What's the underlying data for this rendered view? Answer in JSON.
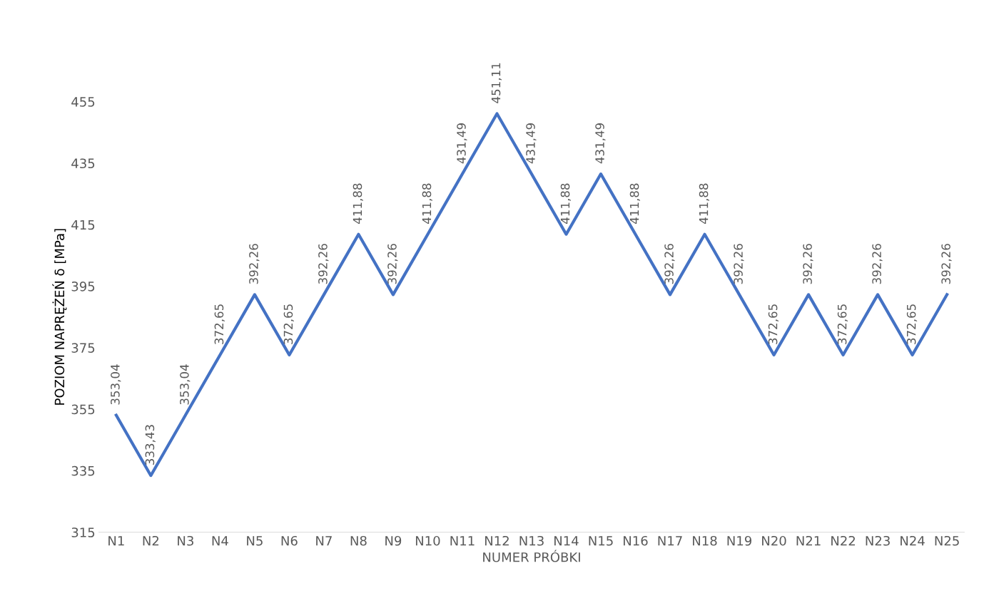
{
  "chart_data": {
    "type": "line",
    "xlabel": "NUMER PRÓBKI",
    "ylabel": "POZIOM NAPRĘŻEŃ δ [MPa]",
    "categories": [
      "N1",
      "N2",
      "N3",
      "N4",
      "N5",
      "N6",
      "N7",
      "N8",
      "N9",
      "N10",
      "N11",
      "N12",
      "N13",
      "N14",
      "N15",
      "N16",
      "N17",
      "N18",
      "N19",
      "N20",
      "N21",
      "N22",
      "N23",
      "N24",
      "N25"
    ],
    "series": [
      {
        "color": "#4472c4",
        "values": [
          353.04,
          333.43,
          353.04,
          372.65,
          392.26,
          372.65,
          392.26,
          411.88,
          392.26,
          411.88,
          431.49,
          451.11,
          431.49,
          411.88,
          431.49,
          411.88,
          392.26,
          411.88,
          392.26,
          372.65,
          392.26,
          372.65,
          392.26,
          372.65,
          392.26
        ],
        "value_labels": [
          "353,04",
          "333,43",
          "353,04",
          "372,65",
          "392,26",
          "372,65",
          "392,26",
          "411,88",
          "392,26",
          "411,88",
          "431,49",
          "451,11",
          "431,49",
          "411,88",
          "431,49",
          "411,88",
          "392,26",
          "411,88",
          "392,26",
          "372,65",
          "392,26",
          "372,65",
          "392,26",
          "372,65",
          "392,26"
        ]
      }
    ],
    "ylim": [
      315,
      455
    ],
    "yticks": [
      315,
      335,
      355,
      375,
      395,
      415,
      435,
      455
    ],
    "grid": false,
    "legend": false,
    "marker": "none",
    "line_style": "solid"
  }
}
